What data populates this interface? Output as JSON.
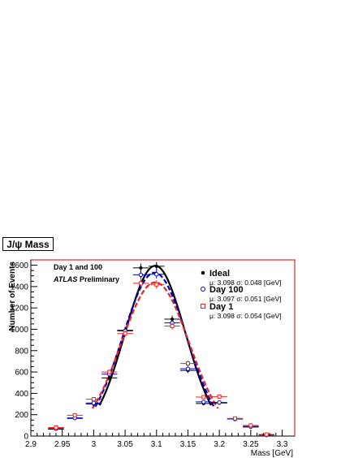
{
  "chart_data": {
    "type": "scatter",
    "title": "J/ψ Mass",
    "xlabel": "Mass [GeV]",
    "ylabel": "Number of Events",
    "xlim": [
      2.9,
      3.32
    ],
    "ylim": [
      0,
      1650
    ],
    "x_ticks": [
      "2.9",
      "2.95",
      "3",
      "3.05",
      "3.1",
      "3.15",
      "3.2",
      "3.25",
      "3.3"
    ],
    "y_ticks": [
      "0",
      "200",
      "400",
      "600",
      "800",
      "1000",
      "1200",
      "1400",
      "1600"
    ],
    "annotations": {
      "line1": "Day 1 and 100",
      "atlas": "ATLAS",
      "preliminary": "Preliminary"
    },
    "legend_position": "top-right",
    "series": [
      {
        "name": "Ideal",
        "stat": "μ: 3.098 σ: 0.048 [GeV]",
        "color": "#000000",
        "marker": "filled-circle",
        "fit_mu": 3.098,
        "fit_sigma": 0.048,
        "fit_peak": 1595,
        "x": [
          2.94,
          2.97,
          3.0,
          3.025,
          3.05,
          3.075,
          3.1,
          3.125,
          3.15,
          3.175,
          3.2,
          3.225,
          3.25,
          3.275
        ],
        "y": [
          65,
          165,
          300,
          545,
          990,
          1575,
          1590,
          1095,
          615,
          305,
          310,
          160,
          85,
          10
        ]
      },
      {
        "name": "Day 100",
        "stat": "μ: 3.097 σ: 0.051 [GeV]",
        "color": "#0000cc",
        "marker": "open-circle",
        "fit_mu": 3.097,
        "fit_sigma": 0.051,
        "fit_peak": 1530,
        "x": [
          2.94,
          2.97,
          3.0,
          3.025,
          3.05,
          3.075,
          3.1,
          3.125,
          3.15,
          3.175,
          3.2,
          3.225,
          3.25,
          3.275
        ],
        "y": [
          70,
          170,
          310,
          580,
          985,
          1510,
          1515,
          1060,
          630,
          320,
          315,
          160,
          90,
          10
        ]
      },
      {
        "name": "Day 1",
        "stat": "μ: 3.098 σ: 0.054 [GeV]",
        "color": "#ee2222",
        "marker": "open-square",
        "fit_mu": 3.098,
        "fit_sigma": 0.054,
        "fit_peak": 1440,
        "x": [
          2.94,
          2.97,
          3.0,
          3.025,
          3.05,
          3.075,
          3.1,
          3.125,
          3.15,
          3.175,
          3.2,
          3.225,
          3.25,
          3.275
        ],
        "y": [
          80,
          195,
          345,
          600,
          960,
          1430,
          1420,
          1030,
          680,
          365,
          370,
          165,
          100,
          15
        ]
      }
    ]
  }
}
